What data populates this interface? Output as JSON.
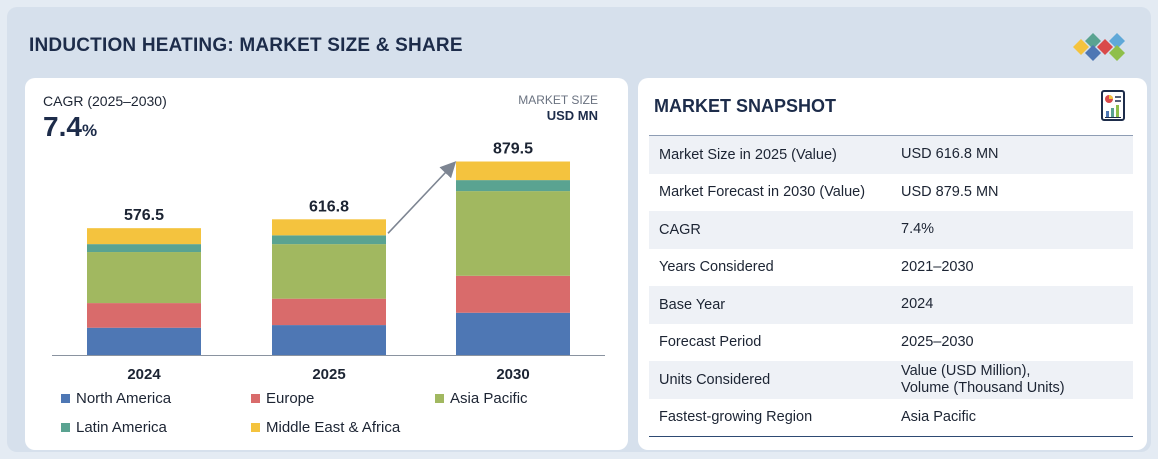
{
  "header": {
    "title": "INDUCTION HEATING: MARKET SIZE & SHARE"
  },
  "chart_panel": {
    "cagr_label": "CAGR (2025–2030)",
    "cagr_value": "7.4",
    "cagr_suffix": "%",
    "market_size_label": "MARKET SIZE",
    "market_size_unit": "USD MN"
  },
  "chart_data": {
    "type": "bar",
    "stacked": true,
    "categories": [
      "2024",
      "2025",
      "2030"
    ],
    "totals": [
      "576.5",
      "616.8",
      "879.5"
    ],
    "series": [
      {
        "name": "North America",
        "color": "#4e77b4",
        "values": [
          124,
          136,
          192
        ]
      },
      {
        "name": "Europe",
        "color": "#d96b6b",
        "values": [
          112,
          120,
          168
        ]
      },
      {
        "name": "Asia Pacific",
        "color": "#a1b860",
        "values": [
          232,
          248,
          385
        ]
      },
      {
        "name": "Latin America",
        "color": "#5aa391",
        "values": [
          36,
          40,
          50
        ]
      },
      {
        "name": "Middle East & Africa",
        "color": "#f4c33e",
        "values": [
          72.5,
          72.8,
          84.5
        ]
      }
    ],
    "ylim": [
      0,
      900
    ],
    "legend_position": "bottom",
    "grid": false
  },
  "snapshot": {
    "title": "MARKET SNAPSHOT",
    "rows": [
      {
        "label": "Market Size in 2025 (Value)",
        "value": "USD 616.8 MN"
      },
      {
        "label": "Market Forecast in 2030 (Value)",
        "value": "USD 879.5 MN"
      },
      {
        "label": "CAGR",
        "value": "7.4%"
      },
      {
        "label": "Years Considered",
        "value": "2021–2030"
      },
      {
        "label": "Base Year",
        "value": "2024"
      },
      {
        "label": "Forecast Period",
        "value": "2025–2030"
      },
      {
        "label": "Units Considered",
        "value": "Value (USD Million),",
        "value2": "Volume (Thousand Units)"
      },
      {
        "label": "Fastest-growing Region",
        "value": "Asia Pacific"
      }
    ]
  },
  "icons": {
    "logo": "diamond-logo-icon",
    "snapshot": "report-document-icon"
  }
}
